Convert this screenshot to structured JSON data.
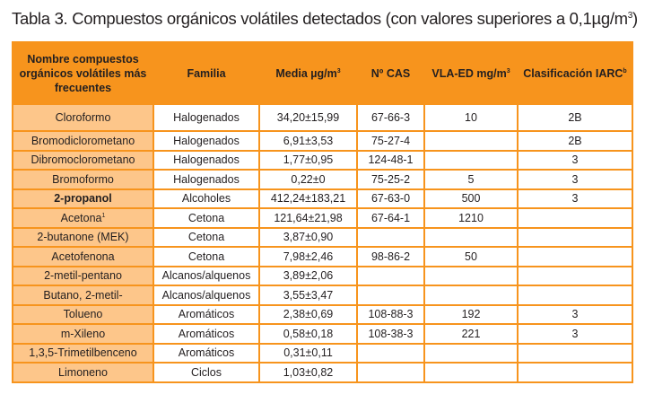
{
  "title": {
    "text": "Tabla 3. Compuestos orgánicos volátiles detectados (con valores superiores a 0,1µg/m",
    "sup": "3",
    "close": ")"
  },
  "headers": [
    {
      "text": "Nombre compuestos orgánicos volátiles más frecuentes",
      "sup": ""
    },
    {
      "text": "Familia",
      "sup": ""
    },
    {
      "text": "Media µg/m",
      "sup": "3"
    },
    {
      "text": "Nº CAS",
      "sup": ""
    },
    {
      "text": "VLA-ED mg/m",
      "sup": "3"
    },
    {
      "text": "Clasificación IARC",
      "sup": "b"
    }
  ],
  "rows": [
    {
      "name": "Cloroformo",
      "sup": "",
      "bold": false,
      "familia": "Halogenados",
      "media": "34,20±15,99",
      "cas": "67-66-3",
      "vla": "10",
      "iarc": "2B"
    },
    {
      "name": "Bromodiclorometano",
      "sup": "",
      "bold": false,
      "familia": "Halogenados",
      "media": "6,91±3,53",
      "cas": "75-27-4",
      "vla": "",
      "iarc": "2B"
    },
    {
      "name": "Dibromoclorometano",
      "sup": "",
      "bold": false,
      "familia": "Halogenados",
      "media": "1,77±0,95",
      "cas": "124-48-1",
      "vla": "",
      "iarc": "3"
    },
    {
      "name": "Bromoformo",
      "sup": "",
      "bold": false,
      "familia": "Halogenados",
      "media": "0,22±0",
      "cas": "75-25-2",
      "vla": "5",
      "iarc": "3"
    },
    {
      "name": "2-propanol",
      "sup": "",
      "bold": true,
      "familia": "Alcoholes",
      "media": "412,24±183,21",
      "cas": "67-63-0",
      "vla": "500",
      "iarc": "3"
    },
    {
      "name": "Acetona",
      "sup": "1",
      "bold": false,
      "familia": "Cetona",
      "media": "121,64±21,98",
      "cas": "67-64-1",
      "vla": "1210",
      "iarc": ""
    },
    {
      "name": "2-butanone (MEK)",
      "sup": "",
      "bold": false,
      "familia": "Cetona",
      "media": "3,87±0,90",
      "cas": "",
      "vla": "",
      "iarc": ""
    },
    {
      "name": "Acetofenona",
      "sup": "",
      "bold": false,
      "familia": "Cetona",
      "media": "7,98±2,46",
      "cas": "98-86-2",
      "vla": "50",
      "iarc": ""
    },
    {
      "name": "2-metil-pentano",
      "sup": "",
      "bold": false,
      "familia": "Alcanos/alquenos",
      "media": "3,89±2,06",
      "cas": "",
      "vla": "",
      "iarc": ""
    },
    {
      "name": "Butano, 2-metil-",
      "sup": "",
      "bold": false,
      "familia": "Alcanos/alquenos",
      "media": "3,55±3,47",
      "cas": "",
      "vla": "",
      "iarc": ""
    },
    {
      "name": "Tolueno",
      "sup": "",
      "bold": false,
      "familia": "Aromáticos",
      "media": "2,38±0,69",
      "cas": "108-88-3",
      "vla": "192",
      "iarc": "3"
    },
    {
      "name": "m-Xileno",
      "sup": "",
      "bold": false,
      "familia": "Aromáticos",
      "media": "0,58±0,18",
      "cas": "108-38-3",
      "vla": "221",
      "iarc": "3"
    },
    {
      "name": "1,3,5-Trimetilbenceno",
      "sup": "",
      "bold": false,
      "familia": "Aromáticos",
      "media": "0,31±0,11",
      "cas": "",
      "vla": "",
      "iarc": ""
    },
    {
      "name": "Limoneno",
      "sup": "",
      "bold": false,
      "familia": "Ciclos",
      "media": "1,03±0,82",
      "cas": "",
      "vla": "",
      "iarc": ""
    }
  ]
}
